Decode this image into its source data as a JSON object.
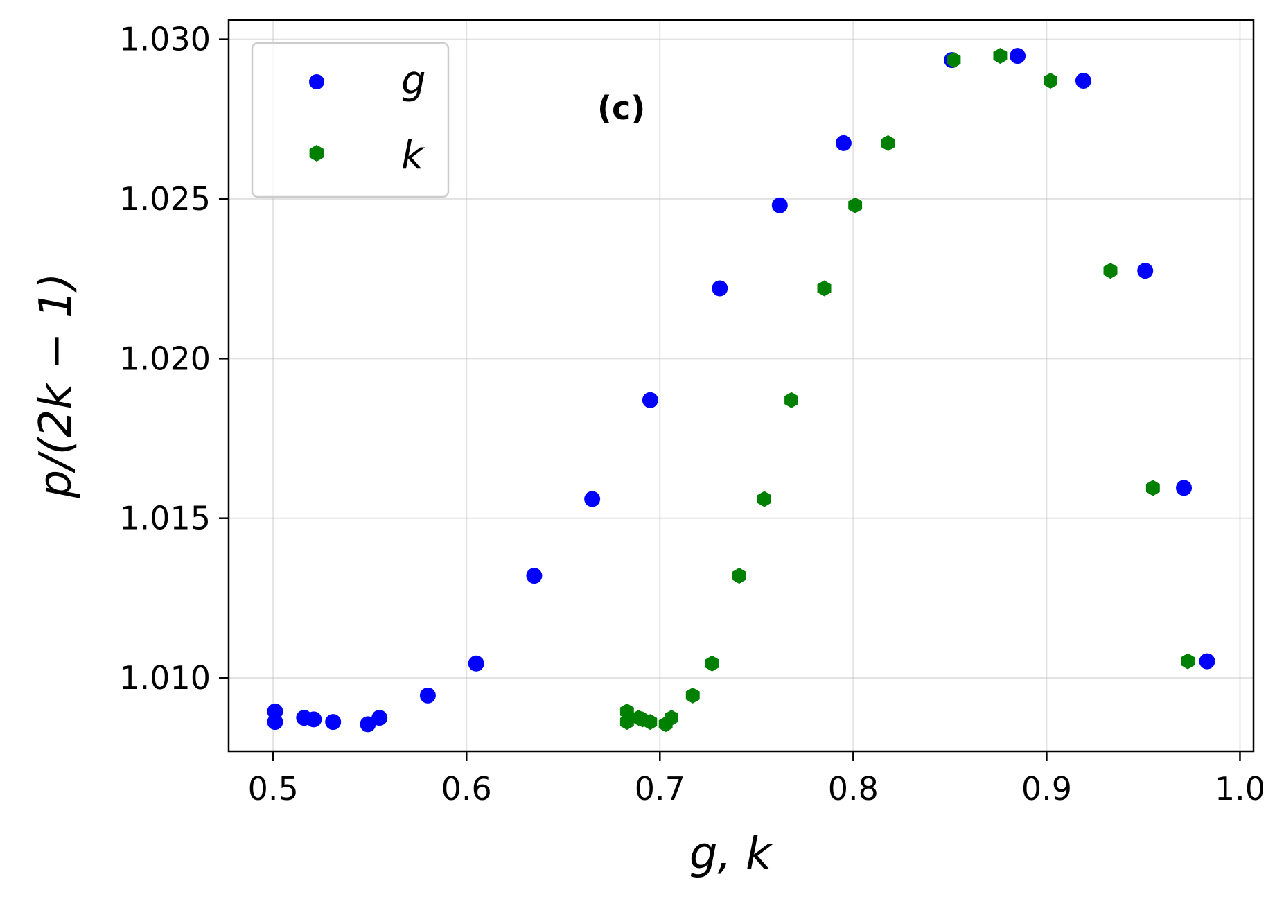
{
  "chart_data": {
    "type": "scatter",
    "title": "",
    "panel_label": "(c)",
    "xlabel": "g, k",
    "ylabel": "p/(2k − 1)",
    "xlim": [
      0.477,
      1.007
    ],
    "ylim": [
      1.0077,
      1.0306
    ],
    "x_ticks": [
      {
        "value": 0.5,
        "label": "0.5"
      },
      {
        "value": 0.6,
        "label": "0.6"
      },
      {
        "value": 0.7,
        "label": "0.7"
      },
      {
        "value": 0.8,
        "label": "0.8"
      },
      {
        "value": 0.9,
        "label": "0.9"
      },
      {
        "value": 1.0,
        "label": "1.0"
      }
    ],
    "y_ticks": [
      {
        "value": 1.01,
        "label": "1.010"
      },
      {
        "value": 1.015,
        "label": "1.015"
      },
      {
        "value": 1.02,
        "label": "1.020"
      },
      {
        "value": 1.025,
        "label": "1.025"
      },
      {
        "value": 1.03,
        "label": "1.030"
      }
    ],
    "grid": true,
    "legend_position": "top-left",
    "series": [
      {
        "name": "g",
        "color": "#0000ff",
        "marker": "circle",
        "points": [
          {
            "x": 0.501,
            "y": 1.00895
          },
          {
            "x": 0.501,
            "y": 1.00862
          },
          {
            "x": 0.516,
            "y": 1.00875
          },
          {
            "x": 0.521,
            "y": 1.0087
          },
          {
            "x": 0.531,
            "y": 1.00862
          },
          {
            "x": 0.549,
            "y": 1.00855
          },
          {
            "x": 0.555,
            "y": 1.00875
          },
          {
            "x": 0.58,
            "y": 1.00945
          },
          {
            "x": 0.605,
            "y": 1.01045
          },
          {
            "x": 0.635,
            "y": 1.0132
          },
          {
            "x": 0.665,
            "y": 1.0156
          },
          {
            "x": 0.695,
            "y": 1.0187
          },
          {
            "x": 0.731,
            "y": 1.0222
          },
          {
            "x": 0.762,
            "y": 1.0248
          },
          {
            "x": 0.795,
            "y": 1.02675
          },
          {
            "x": 0.851,
            "y": 1.02935
          },
          {
            "x": 0.885,
            "y": 1.02948
          },
          {
            "x": 0.919,
            "y": 1.0287
          },
          {
            "x": 0.951,
            "y": 1.02275
          },
          {
            "x": 0.971,
            "y": 1.01595
          },
          {
            "x": 0.983,
            "y": 1.01052
          }
        ]
      },
      {
        "name": "k",
        "color": "#008000",
        "marker": "hexagon",
        "points": [
          {
            "x": 0.683,
            "y": 1.00895
          },
          {
            "x": 0.683,
            "y": 1.00862
          },
          {
            "x": 0.689,
            "y": 1.00875
          },
          {
            "x": 0.691,
            "y": 1.0087
          },
          {
            "x": 0.695,
            "y": 1.00862
          },
          {
            "x": 0.703,
            "y": 1.00855
          },
          {
            "x": 0.706,
            "y": 1.00875
          },
          {
            "x": 0.717,
            "y": 1.00945
          },
          {
            "x": 0.727,
            "y": 1.01045
          },
          {
            "x": 0.741,
            "y": 1.0132
          },
          {
            "x": 0.754,
            "y": 1.0156
          },
          {
            "x": 0.768,
            "y": 1.0187
          },
          {
            "x": 0.785,
            "y": 1.0222
          },
          {
            "x": 0.801,
            "y": 1.0248
          },
          {
            "x": 0.818,
            "y": 1.02675
          },
          {
            "x": 0.852,
            "y": 1.02935
          },
          {
            "x": 0.876,
            "y": 1.02948
          },
          {
            "x": 0.902,
            "y": 1.0287
          },
          {
            "x": 0.933,
            "y": 1.02275
          },
          {
            "x": 0.955,
            "y": 1.01595
          },
          {
            "x": 0.973,
            "y": 1.01052
          }
        ]
      }
    ]
  }
}
